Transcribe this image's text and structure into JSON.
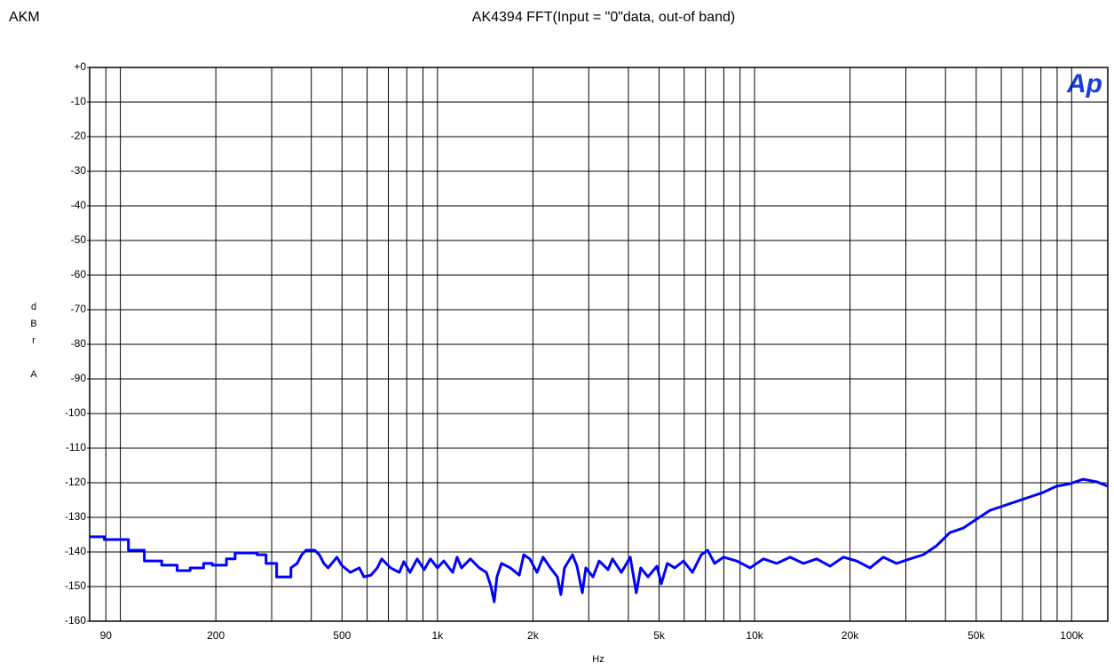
{
  "chart_data": {
    "type": "line",
    "corner_label": "AKM",
    "title": "AK4394 FFT(Input = \"0\"data, out-of band)",
    "y_label": "dBr A",
    "x_label": "Hz",
    "logo": "Ap",
    "x_log_scale": true,
    "grid": true,
    "xlim": [
      80,
      130000
    ],
    "ylim": [
      -160,
      0
    ],
    "xticks": [
      90,
      200,
      500,
      {
        "value": 1000,
        "label": "1k"
      },
      {
        "value": 2000,
        "label": "2k"
      },
      {
        "value": 5000,
        "label": "5k"
      },
      {
        "value": 10000,
        "label": "10k"
      },
      {
        "value": 20000,
        "label": "20k"
      },
      {
        "value": 50000,
        "label": "50k"
      },
      {
        "value": 100000,
        "label": "100k"
      }
    ],
    "x_minor_ticks": [
      100,
      300,
      400,
      600,
      700,
      800,
      900,
      3000,
      4000,
      6000,
      7000,
      8000,
      9000,
      30000,
      40000,
      60000,
      70000,
      80000,
      90000
    ],
    "yticks": [
      {
        "value": 0,
        "label": "+0"
      },
      -10,
      -20,
      -30,
      -40,
      -50,
      -60,
      -70,
      -80,
      -90,
      -100,
      -110,
      -120,
      -130,
      -140,
      -150,
      -160
    ],
    "series": [
      {
        "name": "FFT",
        "color": "#0000ff",
        "x": [
          80,
          89,
          89,
          106,
          106,
          119,
          119,
          135,
          135,
          151,
          151,
          166,
          166,
          183,
          183,
          195,
          195,
          216,
          216,
          230,
          230,
          270,
          270,
          288,
          288,
          311,
          311,
          345,
          345,
          361,
          373,
          385,
          410,
          424,
          438,
          452,
          482,
          498,
          531,
          567,
          586,
          617,
          646,
          667,
          711,
          758,
          783,
          819,
          863,
          908,
          950,
          1000,
          1047,
          1117,
          1153,
          1191,
          1270,
          1355,
          1426,
          1472,
          1510,
          1540,
          1591,
          1698,
          1811,
          1871,
          1955,
          2060,
          2153,
          2270,
          2388,
          2450,
          2515,
          2666,
          2754,
          2863,
          2937,
          3092,
          3236,
          3451,
          3564,
          3802,
          4055,
          4236,
          4375,
          4613,
          4920,
          5080,
          5309,
          5598,
          5970,
          6368,
          6792,
          7112,
          7482,
          7980,
          8790,
          9680,
          10670,
          11750,
          12940,
          14260,
          15700,
          17300,
          19050,
          20990,
          23120,
          25470,
          28050,
          30900,
          34040,
          37500,
          41300,
          45500,
          50120,
          55200,
          60800,
          67000,
          73800,
          81300,
          89600,
          98600,
          108700,
          119700,
          130000
        ],
        "values": [
          -135.6,
          -135.6,
          -136.4,
          -136.4,
          -139.5,
          -139.5,
          -142.6,
          -142.6,
          -143.8,
          -143.8,
          -145.4,
          -145.4,
          -144.6,
          -144.6,
          -143.3,
          -143.3,
          -143.8,
          -143.8,
          -142,
          -142,
          -140.3,
          -140.3,
          -140.8,
          -140.8,
          -143.3,
          -143.3,
          -147.2,
          -147.2,
          -144.6,
          -143.3,
          -140.8,
          -139.5,
          -139.5,
          -140.8,
          -143.3,
          -144.6,
          -141.5,
          -143.8,
          -145.9,
          -144.6,
          -147.2,
          -146.7,
          -144.6,
          -142,
          -144.6,
          -145.9,
          -142.8,
          -145.9,
          -142,
          -145.1,
          -142,
          -144.6,
          -142.6,
          -145.9,
          -141.5,
          -144.6,
          -142,
          -144.6,
          -145.9,
          -149.7,
          -154.4,
          -147.2,
          -143.3,
          -144.6,
          -146.7,
          -140.8,
          -142,
          -145.9,
          -141.5,
          -144.6,
          -147.2,
          -152.3,
          -144.6,
          -140.8,
          -144.1,
          -151.8,
          -144.6,
          -147.2,
          -142.6,
          -145.1,
          -142,
          -145.9,
          -141.5,
          -151.8,
          -144.6,
          -147.2,
          -144.1,
          -149.2,
          -143.3,
          -144.6,
          -142.6,
          -145.9,
          -140.8,
          -139.5,
          -143.3,
          -141.5,
          -142.6,
          -144.6,
          -142,
          -143.3,
          -141.5,
          -143.3,
          -142,
          -144.1,
          -141.5,
          -142.6,
          -144.6,
          -141.5,
          -143.3,
          -142,
          -140.8,
          -138.2,
          -134.4,
          -133.1,
          -130.5,
          -128,
          -126.7,
          -125.4,
          -124.1,
          -122.8,
          -121,
          -120.3,
          -119,
          -119.7,
          -121
        ]
      }
    ]
  }
}
